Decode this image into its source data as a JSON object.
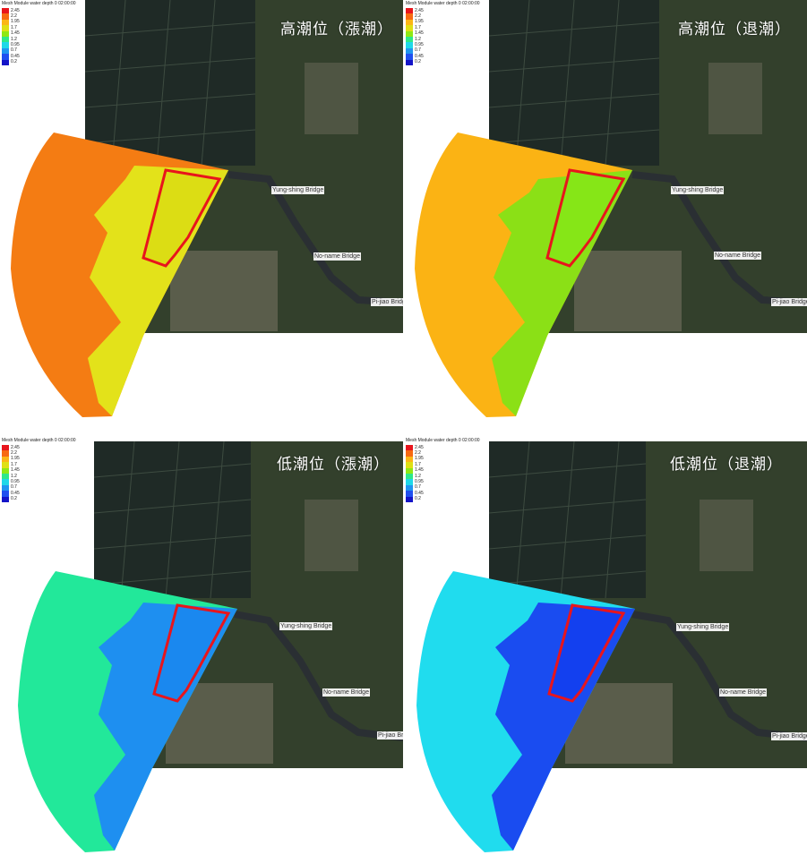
{
  "legend": {
    "title": "Mesh Module water depth 0 02:00:00",
    "values": [
      "2.45",
      "2.2",
      "1.95",
      "1.7",
      "1.45",
      "1.2",
      "0.95",
      "0.7",
      "0.45",
      "0.2"
    ],
    "colors": [
      "#e8151c",
      "#f76a12",
      "#fbb616",
      "#dfe015",
      "#8fe815",
      "#2fe88a",
      "#1fd8e8",
      "#2096f0",
      "#2050f0",
      "#1414c8"
    ]
  },
  "panels": [
    {
      "title": "高潮位（漲潮）",
      "nearshore": "#e3e21a",
      "offshore": "#f47c13",
      "box": "#dcdd14",
      "bridges": [
        "Yung-shing Bridge",
        "No-name Bridge",
        "Pi-jiao Bridge"
      ]
    },
    {
      "title": "高潮位（退潮）",
      "nearshore": "#8be016",
      "offshore": "#fbb314",
      "box": "#86e617",
      "bridges": [
        "Yung-shing Bridge",
        "No-name Bridge",
        "Pi-jiao Bridge"
      ]
    },
    {
      "title": "低潮位（漲潮）",
      "nearshore": "#1e8ff0",
      "offshore": "#22e89a",
      "box": "#1a88ef",
      "bridges": [
        "Yung-shing Bridge",
        "No-name Bridge",
        "Pi-jiao Bri"
      ]
    },
    {
      "title": "低潮位（退潮）",
      "nearshore": "#1a4cf0",
      "offshore": "#20dcee",
      "box": "#1340ef",
      "bridges": [
        "Yung-shing Bridge",
        "No-name Bridge",
        "Pi-jiao Bridge"
      ]
    }
  ],
  "colors": {
    "boundary": "#e8151c",
    "canal": "#2a2f33",
    "land": "#3a4a2c",
    "fishpond": "#1c2622"
  }
}
